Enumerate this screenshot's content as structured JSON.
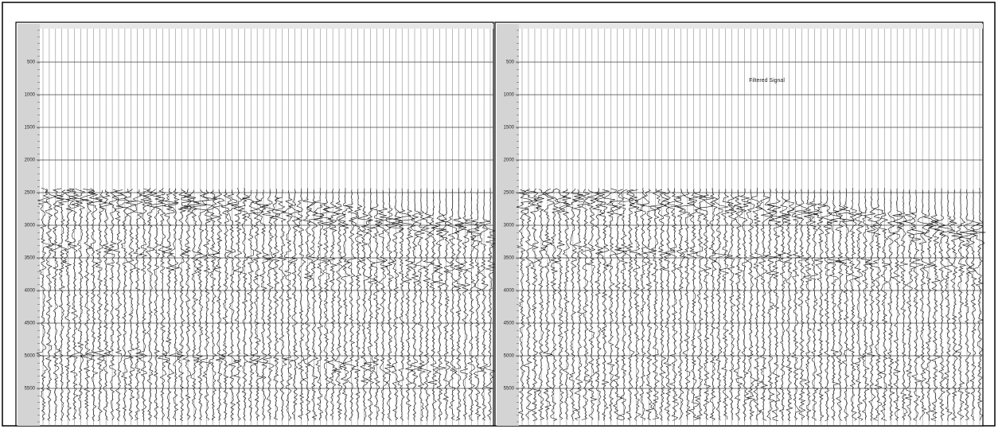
{
  "panels": [
    {
      "yticks": [
        500,
        1000,
        1500,
        2000,
        2500,
        3000,
        3500,
        4000,
        4500,
        5000,
        5500
      ]
    },
    {
      "yticks": [
        500,
        1000,
        1500,
        2000,
        2500,
        3000,
        3500,
        4000,
        4500,
        5000,
        5500
      ],
      "annotation": "Filtered Signal"
    }
  ]
}
